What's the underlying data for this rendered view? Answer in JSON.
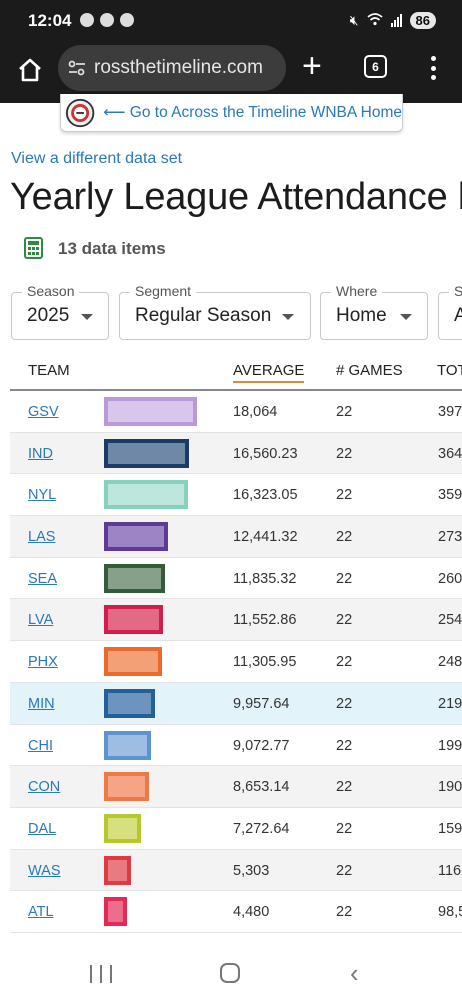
{
  "status": {
    "time": "12:04",
    "battery": "86"
  },
  "browser": {
    "url": "rossthetimeline.com",
    "tab_count": "6"
  },
  "banner": {
    "link": "⟵ Go to Across the Timeline WNBA Home"
  },
  "view_link": "View a different data set",
  "title": "Yearly League Attendance b",
  "data_items": "13 data items",
  "filters": [
    {
      "label": "Season",
      "value": "2025"
    },
    {
      "label": "Segment",
      "value": "Regular Season"
    },
    {
      "label": "Where",
      "value": "Home"
    },
    {
      "label": "S",
      "value": "A"
    }
  ],
  "table": {
    "headers": {
      "team": "TEAM",
      "average": "AVERAGE",
      "games": "# GAMES",
      "total": "TOT"
    },
    "rows": [
      {
        "team": "GSV",
        "average": "18,064",
        "games": "22",
        "total": "397",
        "avg_value": 18064,
        "fill": "#d9c6ec",
        "border": "#b99ad9"
      },
      {
        "team": "IND",
        "average": "16,560.23",
        "games": "22",
        "total": "364",
        "avg_value": 16560.23,
        "fill": "#6f88a8",
        "border": "#1c3a66"
      },
      {
        "team": "NYL",
        "average": "16,323.05",
        "games": "22",
        "total": "359",
        "avg_value": 16323.05,
        "fill": "#bde7dc",
        "border": "#86d2bf"
      },
      {
        "team": "LAS",
        "average": "12,441.32",
        "games": "22",
        "total": "273",
        "avg_value": 12441.32,
        "fill": "#9d84c4",
        "border": "#5e3a94"
      },
      {
        "team": "SEA",
        "average": "11,835.32",
        "games": "22",
        "total": "260",
        "avg_value": 11835.32,
        "fill": "#86a08a",
        "border": "#345c3a"
      },
      {
        "team": "LVA",
        "average": "11,552.86",
        "games": "22",
        "total": "254",
        "avg_value": 11552.86,
        "fill": "#e26a85",
        "border": "#d01f4d"
      },
      {
        "team": "PHX",
        "average": "11,305.95",
        "games": "22",
        "total": "248",
        "avg_value": 11305.95,
        "fill": "#f4a077",
        "border": "#ea6a2e"
      },
      {
        "team": "MIN",
        "average": "9,957.64",
        "games": "22",
        "total": "219",
        "avg_value": 9957.64,
        "fill": "#6d94bf",
        "border": "#235f99"
      },
      {
        "team": "CHI",
        "average": "9,072.77",
        "games": "22",
        "total": "199",
        "avg_value": 9072.77,
        "fill": "#9dbde3",
        "border": "#5c93d1"
      },
      {
        "team": "CON",
        "average": "8,653.14",
        "games": "22",
        "total": "190",
        "avg_value": 8653.14,
        "fill": "#f5a585",
        "border": "#ef7848"
      },
      {
        "team": "DAL",
        "average": "7,272.64",
        "games": "22",
        "total": "159",
        "avg_value": 7272.64,
        "fill": "#d6e07e",
        "border": "#b8c82a"
      },
      {
        "team": "WAS",
        "average": "5,303",
        "games": "22",
        "total": "116",
        "avg_value": 5303,
        "fill": "#e87b82",
        "border": "#dd3a44"
      },
      {
        "team": "ATL",
        "average": "4,480",
        "games": "22",
        "total": "98,5",
        "avg_value": 4480,
        "fill": "#ef6d8c",
        "border": "#e32a56"
      }
    ]
  }
}
